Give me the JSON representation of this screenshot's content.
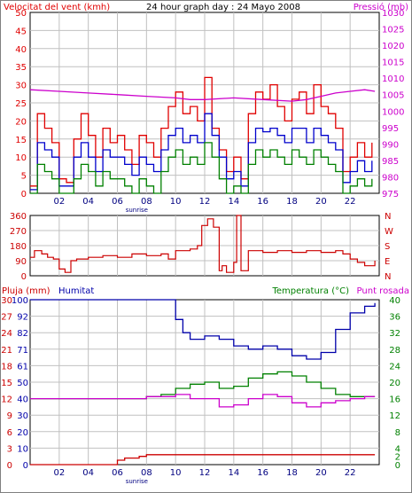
{
  "header": {
    "wind_label": "Velocitat del vent (kmh)",
    "title": "24 hour graph day : 24 Mayo 2008",
    "pressure_label": "Pressió (mb)"
  },
  "colors": {
    "wind": "#e00000",
    "gust": "#e00000",
    "avg": "#0000cc",
    "low": "#008000",
    "pressure": "#cc00cc",
    "direction": "#cc0000",
    "rain": "#cc0000",
    "humidity": "#0000aa",
    "temperature": "#008000",
    "dewpoint": "#cc00cc",
    "grid": "#c0c0c0",
    "frame": "#000000"
  },
  "x_axis": {
    "range": [
      0,
      24
    ],
    "ticks": [
      2,
      4,
      6,
      8,
      10,
      12,
      14,
      16,
      18,
      20,
      22
    ],
    "labels": [
      "02",
      "04",
      "06",
      "08",
      "10",
      "12",
      "14",
      "16",
      "18",
      "20",
      "22"
    ],
    "sunrise_label": "sunrise",
    "sunrise_hour": 6.6
  },
  "chart_data": [
    {
      "type": "line",
      "name": "wind",
      "ylim_left": [
        0,
        50
      ],
      "ylim_right": [
        975,
        1030
      ],
      "left_ticks": [
        0,
        5,
        10,
        15,
        20,
        25,
        30,
        35,
        40,
        45,
        50
      ],
      "right_ticks": [
        975,
        980,
        985,
        990,
        995,
        1000,
        1005,
        1010,
        1015,
        1020,
        1025,
        1030
      ],
      "series": [
        {
          "key": "gust",
          "x": [
            0,
            0.5,
            1,
            1.5,
            2,
            2.5,
            3,
            3.5,
            4,
            4.5,
            5,
            5.5,
            6,
            6.5,
            7,
            7.5,
            8,
            8.5,
            9,
            9.5,
            10,
            10.5,
            11,
            11.5,
            12,
            12.5,
            13,
            13.5,
            14,
            14.5,
            15,
            15.5,
            16,
            16.5,
            17,
            17.5,
            18,
            18.5,
            19,
            19.5,
            20,
            20.5,
            21,
            21.5,
            22,
            22.5,
            23,
            23.5
          ],
          "y": [
            2,
            22,
            18,
            14,
            4,
            3,
            15,
            22,
            16,
            10,
            18,
            14,
            16,
            12,
            8,
            16,
            14,
            10,
            18,
            24,
            28,
            22,
            24,
            20,
            32,
            18,
            12,
            6,
            10,
            4,
            22,
            28,
            26,
            30,
            24,
            20,
            26,
            28,
            22,
            30,
            24,
            22,
            18,
            6,
            10,
            14,
            10,
            14
          ]
        },
        {
          "key": "average",
          "x": [
            0,
            0.5,
            1,
            1.5,
            2,
            2.5,
            3,
            3.5,
            4,
            4.5,
            5,
            5.5,
            6,
            6.5,
            7,
            7.5,
            8,
            8.5,
            9,
            9.5,
            10,
            10.5,
            11,
            11.5,
            12,
            12.5,
            13,
            13.5,
            14,
            14.5,
            15,
            15.5,
            16,
            16.5,
            17,
            17.5,
            18,
            18.5,
            19,
            19.5,
            20,
            20.5,
            21,
            21.5,
            22,
            22.5,
            23,
            23.5
          ],
          "y": [
            1,
            14,
            12,
            10,
            2,
            2,
            10,
            14,
            10,
            6,
            12,
            10,
            10,
            8,
            5,
            10,
            8,
            6,
            12,
            16,
            18,
            14,
            16,
            14,
            22,
            16,
            10,
            4,
            6,
            2,
            14,
            18,
            17,
            18,
            16,
            14,
            18,
            18,
            14,
            18,
            16,
            14,
            12,
            3,
            6,
            9,
            6,
            9
          ]
        },
        {
          "key": "low",
          "x": [
            0,
            0.5,
            1,
            1.5,
            2,
            2.5,
            3,
            3.5,
            4,
            4.5,
            5,
            5.5,
            6,
            6.5,
            7,
            7.5,
            8,
            8.5,
            9,
            9.5,
            10,
            10.5,
            11,
            11.5,
            12,
            12.5,
            13,
            13.5,
            14,
            14.5,
            15,
            15.5,
            16,
            16.5,
            17,
            17.5,
            18,
            18.5,
            19,
            19.5,
            20,
            20.5,
            21,
            21.5,
            22,
            22.5,
            23,
            23.5
          ],
          "y": [
            0,
            8,
            6,
            4,
            0,
            0,
            4,
            8,
            6,
            2,
            6,
            4,
            4,
            2,
            0,
            4,
            2,
            0,
            6,
            10,
            12,
            8,
            10,
            8,
            14,
            10,
            4,
            0,
            2,
            0,
            8,
            12,
            10,
            12,
            10,
            8,
            12,
            10,
            8,
            12,
            10,
            8,
            6,
            0,
            2,
            4,
            2,
            4
          ]
        },
        {
          "key": "pressure",
          "axis": "right",
          "x": [
            0,
            2,
            4,
            6,
            8,
            10,
            11,
            12,
            14,
            16,
            18,
            19,
            20,
            21,
            22,
            23,
            23.7
          ],
          "y": [
            1006.5,
            1006,
            1005.5,
            1005,
            1004.5,
            1004,
            1003.5,
            1003.5,
            1004,
            1003.5,
            1003,
            1003.5,
            1004.5,
            1005.5,
            1006,
            1006.5,
            1006
          ]
        }
      ]
    },
    {
      "type": "line",
      "name": "direction",
      "ylim": [
        0,
        360
      ],
      "left_ticks": [
        0,
        90,
        180,
        270,
        360
      ],
      "right_labels": [
        "N",
        "W",
        "S",
        "E",
        "N"
      ],
      "series": [
        {
          "key": "direction",
          "x": [
            0,
            0.3,
            0.8,
            1.2,
            1.6,
            2.0,
            2.4,
            2.8,
            3.2,
            4,
            5,
            6,
            7,
            8,
            9,
            9.5,
            10,
            11,
            11.5,
            11.8,
            12.2,
            12.6,
            13,
            13.2,
            13.5,
            14,
            14.2,
            14.5,
            15,
            16,
            17,
            18,
            19,
            20,
            21,
            21.5,
            22,
            22.5,
            23,
            23.7
          ],
          "y": [
            110,
            150,
            130,
            110,
            100,
            40,
            20,
            90,
            100,
            110,
            120,
            110,
            130,
            120,
            130,
            100,
            150,
            160,
            180,
            300,
            340,
            290,
            30,
            60,
            20,
            80,
            360,
            30,
            150,
            140,
            150,
            140,
            150,
            140,
            150,
            130,
            100,
            80,
            60,
            90
          ]
        }
      ]
    },
    {
      "type": "line",
      "name": "humidity-temp",
      "header": {
        "rain_label": "Pluja (mm)",
        "humidity_label": "Humitat",
        "temp_label": "Temperatura (°C)",
        "dew_label": "Punt rosada"
      },
      "left_ticks_rain": [
        0,
        3,
        6,
        9,
        12,
        15,
        18,
        21,
        24,
        27,
        30
      ],
      "left_ticks_hum": [
        0,
        10,
        20,
        30,
        40,
        50,
        61,
        71,
        82,
        92,
        100
      ],
      "right_ticks": [
        0,
        2,
        4,
        8,
        12,
        16,
        20,
        24,
        28,
        32,
        36,
        40
      ],
      "series": [
        {
          "key": "humidity",
          "ylim": [
            0,
            100
          ],
          "x": [
            0,
            2,
            4,
            6,
            8,
            9,
            10,
            10.5,
            11,
            12,
            13,
            14,
            15,
            16,
            17,
            18,
            19,
            20,
            21,
            22,
            23,
            23.7
          ],
          "y": [
            100,
            100,
            100,
            100,
            100,
            100,
            88,
            80,
            76,
            78,
            76,
            72,
            70,
            72,
            70,
            66,
            64,
            68,
            82,
            92,
            96,
            98
          ]
        },
        {
          "key": "temperature",
          "ylim": [
            0,
            40
          ],
          "x": [
            0,
            2,
            4,
            6,
            8,
            9,
            10,
            11,
            12,
            13,
            14,
            15,
            16,
            17,
            18,
            19,
            20,
            21,
            22,
            23,
            23.7
          ],
          "y": [
            16,
            16,
            16,
            16,
            16.5,
            17,
            18.5,
            19.5,
            20,
            18.5,
            19,
            21,
            22,
            22.5,
            21.5,
            20,
            18.5,
            17,
            16.5,
            16.5,
            16.5
          ]
        },
        {
          "key": "dewpoint",
          "ylim": [
            0,
            40
          ],
          "x": [
            0,
            2,
            4,
            6,
            8,
            9,
            10,
            11,
            12,
            13,
            14,
            15,
            16,
            17,
            18,
            19,
            20,
            21,
            22,
            23,
            23.7
          ],
          "y": [
            16,
            16,
            16,
            16,
            16.5,
            16.5,
            17,
            16,
            16,
            14,
            14.5,
            16,
            17,
            16.5,
            15,
            14,
            15,
            15.5,
            16,
            16.5,
            16.5
          ]
        },
        {
          "key": "rain",
          "ylim": [
            0,
            30
          ],
          "x": [
            0,
            2,
            4,
            5.8,
            6.0,
            6.5,
            7.5,
            8.0,
            10,
            14,
            18,
            22,
            23.7
          ],
          "y": [
            0,
            0,
            0,
            0,
            0.8,
            1.2,
            1.5,
            1.8,
            1.8,
            1.8,
            1.8,
            1.8,
            1.8
          ]
        }
      ]
    }
  ]
}
